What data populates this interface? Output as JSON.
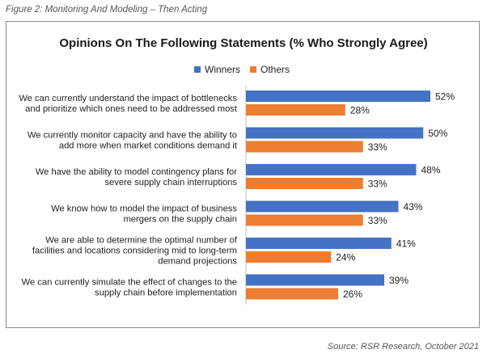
{
  "figure_caption": "Figure 2: Monitoring And Modeling – Then Acting",
  "source": "Source: RSR Research, October 2021",
  "chart_data": {
    "type": "bar",
    "orientation": "horizontal",
    "title": "Opinions On The Following Statements (% Who Strongly Agree)",
    "xlabel": "",
    "ylabel": "",
    "xlim": [
      0,
      60
    ],
    "grid": false,
    "legend_position": "top",
    "value_suffix": "%",
    "categories": [
      [
        "We can currently understand the impact of bottlenecks",
        "and prioritize which ones need to be addressed most"
      ],
      [
        "We currently monitor capacity and have the ability to",
        "add more when market conditions demand it"
      ],
      [
        "We have the ability to model contingency plans for",
        "severe supply chain interruptions"
      ],
      [
        "We know how to model the impact of business",
        "mergers on the supply chain"
      ],
      [
        "We are able to determine the optimal number of",
        "facilities and locations considering mid to long-term",
        "demand projections"
      ],
      [
        "We can currently simulate the effect of changes to the",
        "supply chain before implementation"
      ]
    ],
    "series": [
      {
        "name": "Winners",
        "color": "#4472c4",
        "values": [
          52,
          50,
          48,
          43,
          41,
          39
        ]
      },
      {
        "name": "Others",
        "color": "#ed7d31",
        "values": [
          28,
          33,
          33,
          33,
          24,
          26
        ]
      }
    ]
  }
}
